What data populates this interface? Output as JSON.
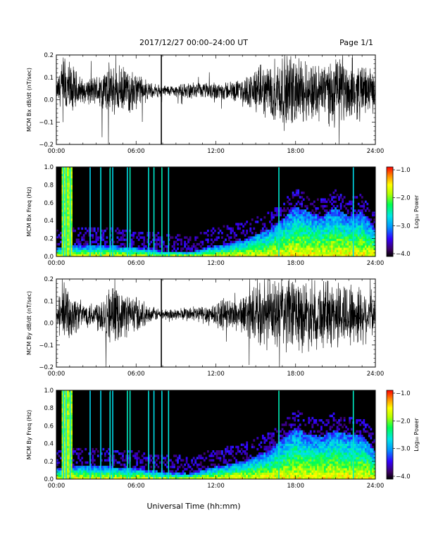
{
  "header": {
    "title": "2017/12/27  00:00–24:00 UT",
    "page": "Page 1/1"
  },
  "x_axis_title": "Universal Time (hh:mm)",
  "colors": {
    "trace": "#000000",
    "spectrogram_background": "#000000",
    "colormap": [
      "#000000",
      "#5a0096",
      "#2a00ff",
      "#0080ff",
      "#00e0ff",
      "#00ff60",
      "#aaff00",
      "#ffff00",
      "#ff8000",
      "#ff0000"
    ]
  },
  "chart_data": [
    {
      "type": "line",
      "name": "bx-dbdt",
      "ylabel": "MCM Bx dB/dt (nT/sec)",
      "xlim": [
        0,
        24
      ],
      "ylim": [
        -0.2,
        0.2
      ],
      "xtick_labels": [
        "00:00",
        "06:00",
        "12:00",
        "18:00",
        "24:00"
      ],
      "ytick_labels": [
        "0.2",
        "0.1",
        "0.0",
        "−0.1",
        "−0.2"
      ],
      "baseline": 0.04,
      "activity_envelope": {
        "hour": [
          0,
          0.5,
          1,
          2,
          3,
          4,
          5,
          6,
          7,
          8,
          9,
          10,
          11,
          12,
          13,
          14,
          15,
          16,
          17,
          18,
          19,
          20,
          21,
          22,
          23,
          24
        ],
        "amplitude": [
          0.03,
          0.2,
          0.15,
          0.06,
          0.08,
          0.14,
          0.12,
          0.1,
          0.04,
          0.03,
          0.03,
          0.04,
          0.04,
          0.05,
          0.05,
          0.06,
          0.12,
          0.14,
          0.2,
          0.18,
          0.16,
          0.16,
          0.17,
          0.17,
          0.14,
          0.1
        ]
      },
      "spike_hour": 7.9
    },
    {
      "type": "heatmap",
      "name": "bx-spectrogram",
      "ylabel": "MCM Bx Freq (Hz)",
      "xlim": [
        0,
        24
      ],
      "ylim": [
        0,
        1
      ],
      "xtick_labels": [
        "00:00",
        "06:00",
        "12:00",
        "18:00",
        "24:00"
      ],
      "ytick_labels": [
        "1.0",
        "0.8",
        "0.6",
        "0.4",
        "0.2",
        "0.0"
      ],
      "colorbar": {
        "label": "Log₁₀ Power",
        "range": [
          -4,
          -1
        ],
        "tick_labels": [
          "−1.0",
          "−2.0",
          "−3.0",
          "−4.0"
        ]
      },
      "bands_hours": [
        0.5,
        0.7,
        1.0,
        2.5,
        3.3,
        4.0,
        4.2,
        5.3,
        5.5,
        6.9,
        7.3,
        7.9,
        8.4,
        16.7,
        22.3
      ],
      "activity_top_hz": {
        "hour": [
          0,
          2,
          4,
          6,
          8,
          10,
          12,
          14,
          16,
          17,
          18,
          19,
          20,
          21,
          22,
          23,
          24
        ],
        "freq": [
          0.1,
          0.12,
          0.12,
          0.1,
          0.06,
          0.05,
          0.12,
          0.18,
          0.3,
          0.42,
          0.55,
          0.5,
          0.45,
          0.55,
          0.45,
          0.5,
          0.3
        ]
      }
    },
    {
      "type": "line",
      "name": "by-dbdt",
      "ylabel": "MCM By dB/dt (nT/sec)",
      "xlim": [
        0,
        24
      ],
      "ylim": [
        -0.2,
        0.2
      ],
      "xtick_labels": [
        "00:00",
        "06:00",
        "12:00",
        "18:00",
        "24:00"
      ],
      "ytick_labels": [
        "0.2",
        "0.1",
        "0.0",
        "−0.1",
        "−0.2"
      ],
      "baseline": 0.04,
      "activity_envelope": {
        "hour": [
          0,
          0.5,
          1,
          2,
          3,
          4,
          5,
          6,
          7,
          8,
          9,
          10,
          11,
          12,
          13,
          14,
          15,
          16,
          17,
          18,
          19,
          20,
          21,
          22,
          23,
          24
        ],
        "amplitude": [
          0.03,
          0.2,
          0.14,
          0.06,
          0.08,
          0.15,
          0.12,
          0.1,
          0.04,
          0.03,
          0.03,
          0.04,
          0.05,
          0.07,
          0.08,
          0.1,
          0.15,
          0.17,
          0.2,
          0.2,
          0.18,
          0.18,
          0.18,
          0.18,
          0.16,
          0.1
        ]
      },
      "spike_hour": 7.9
    },
    {
      "type": "heatmap",
      "name": "by-spectrogram",
      "ylabel": "MCM By Freq (Hz)",
      "xlim": [
        0,
        24
      ],
      "ylim": [
        0,
        1
      ],
      "xtick_labels": [
        "00:00",
        "06:00",
        "12:00",
        "18:00",
        "24:00"
      ],
      "ytick_labels": [
        "1.0",
        "0.8",
        "0.6",
        "0.4",
        "0.2",
        "0.0"
      ],
      "colorbar": {
        "label": "Log₁₀ Power",
        "range": [
          -4,
          -1
        ],
        "tick_labels": [
          "−1.0",
          "−2.0",
          "−3.0",
          "−4.0"
        ]
      },
      "bands_hours": [
        0.5,
        0.7,
        1.0,
        2.5,
        3.3,
        4.0,
        4.2,
        5.3,
        5.5,
        6.9,
        7.3,
        7.9,
        8.4,
        16.7,
        22.3
      ],
      "activity_top_hz": {
        "hour": [
          0,
          2,
          4,
          6,
          8,
          10,
          12,
          14,
          16,
          17,
          18,
          19,
          20,
          21,
          22,
          23,
          24
        ],
        "freq": [
          0.12,
          0.15,
          0.14,
          0.12,
          0.08,
          0.06,
          0.14,
          0.2,
          0.32,
          0.45,
          0.58,
          0.5,
          0.48,
          0.55,
          0.5,
          0.5,
          0.32
        ]
      }
    }
  ]
}
